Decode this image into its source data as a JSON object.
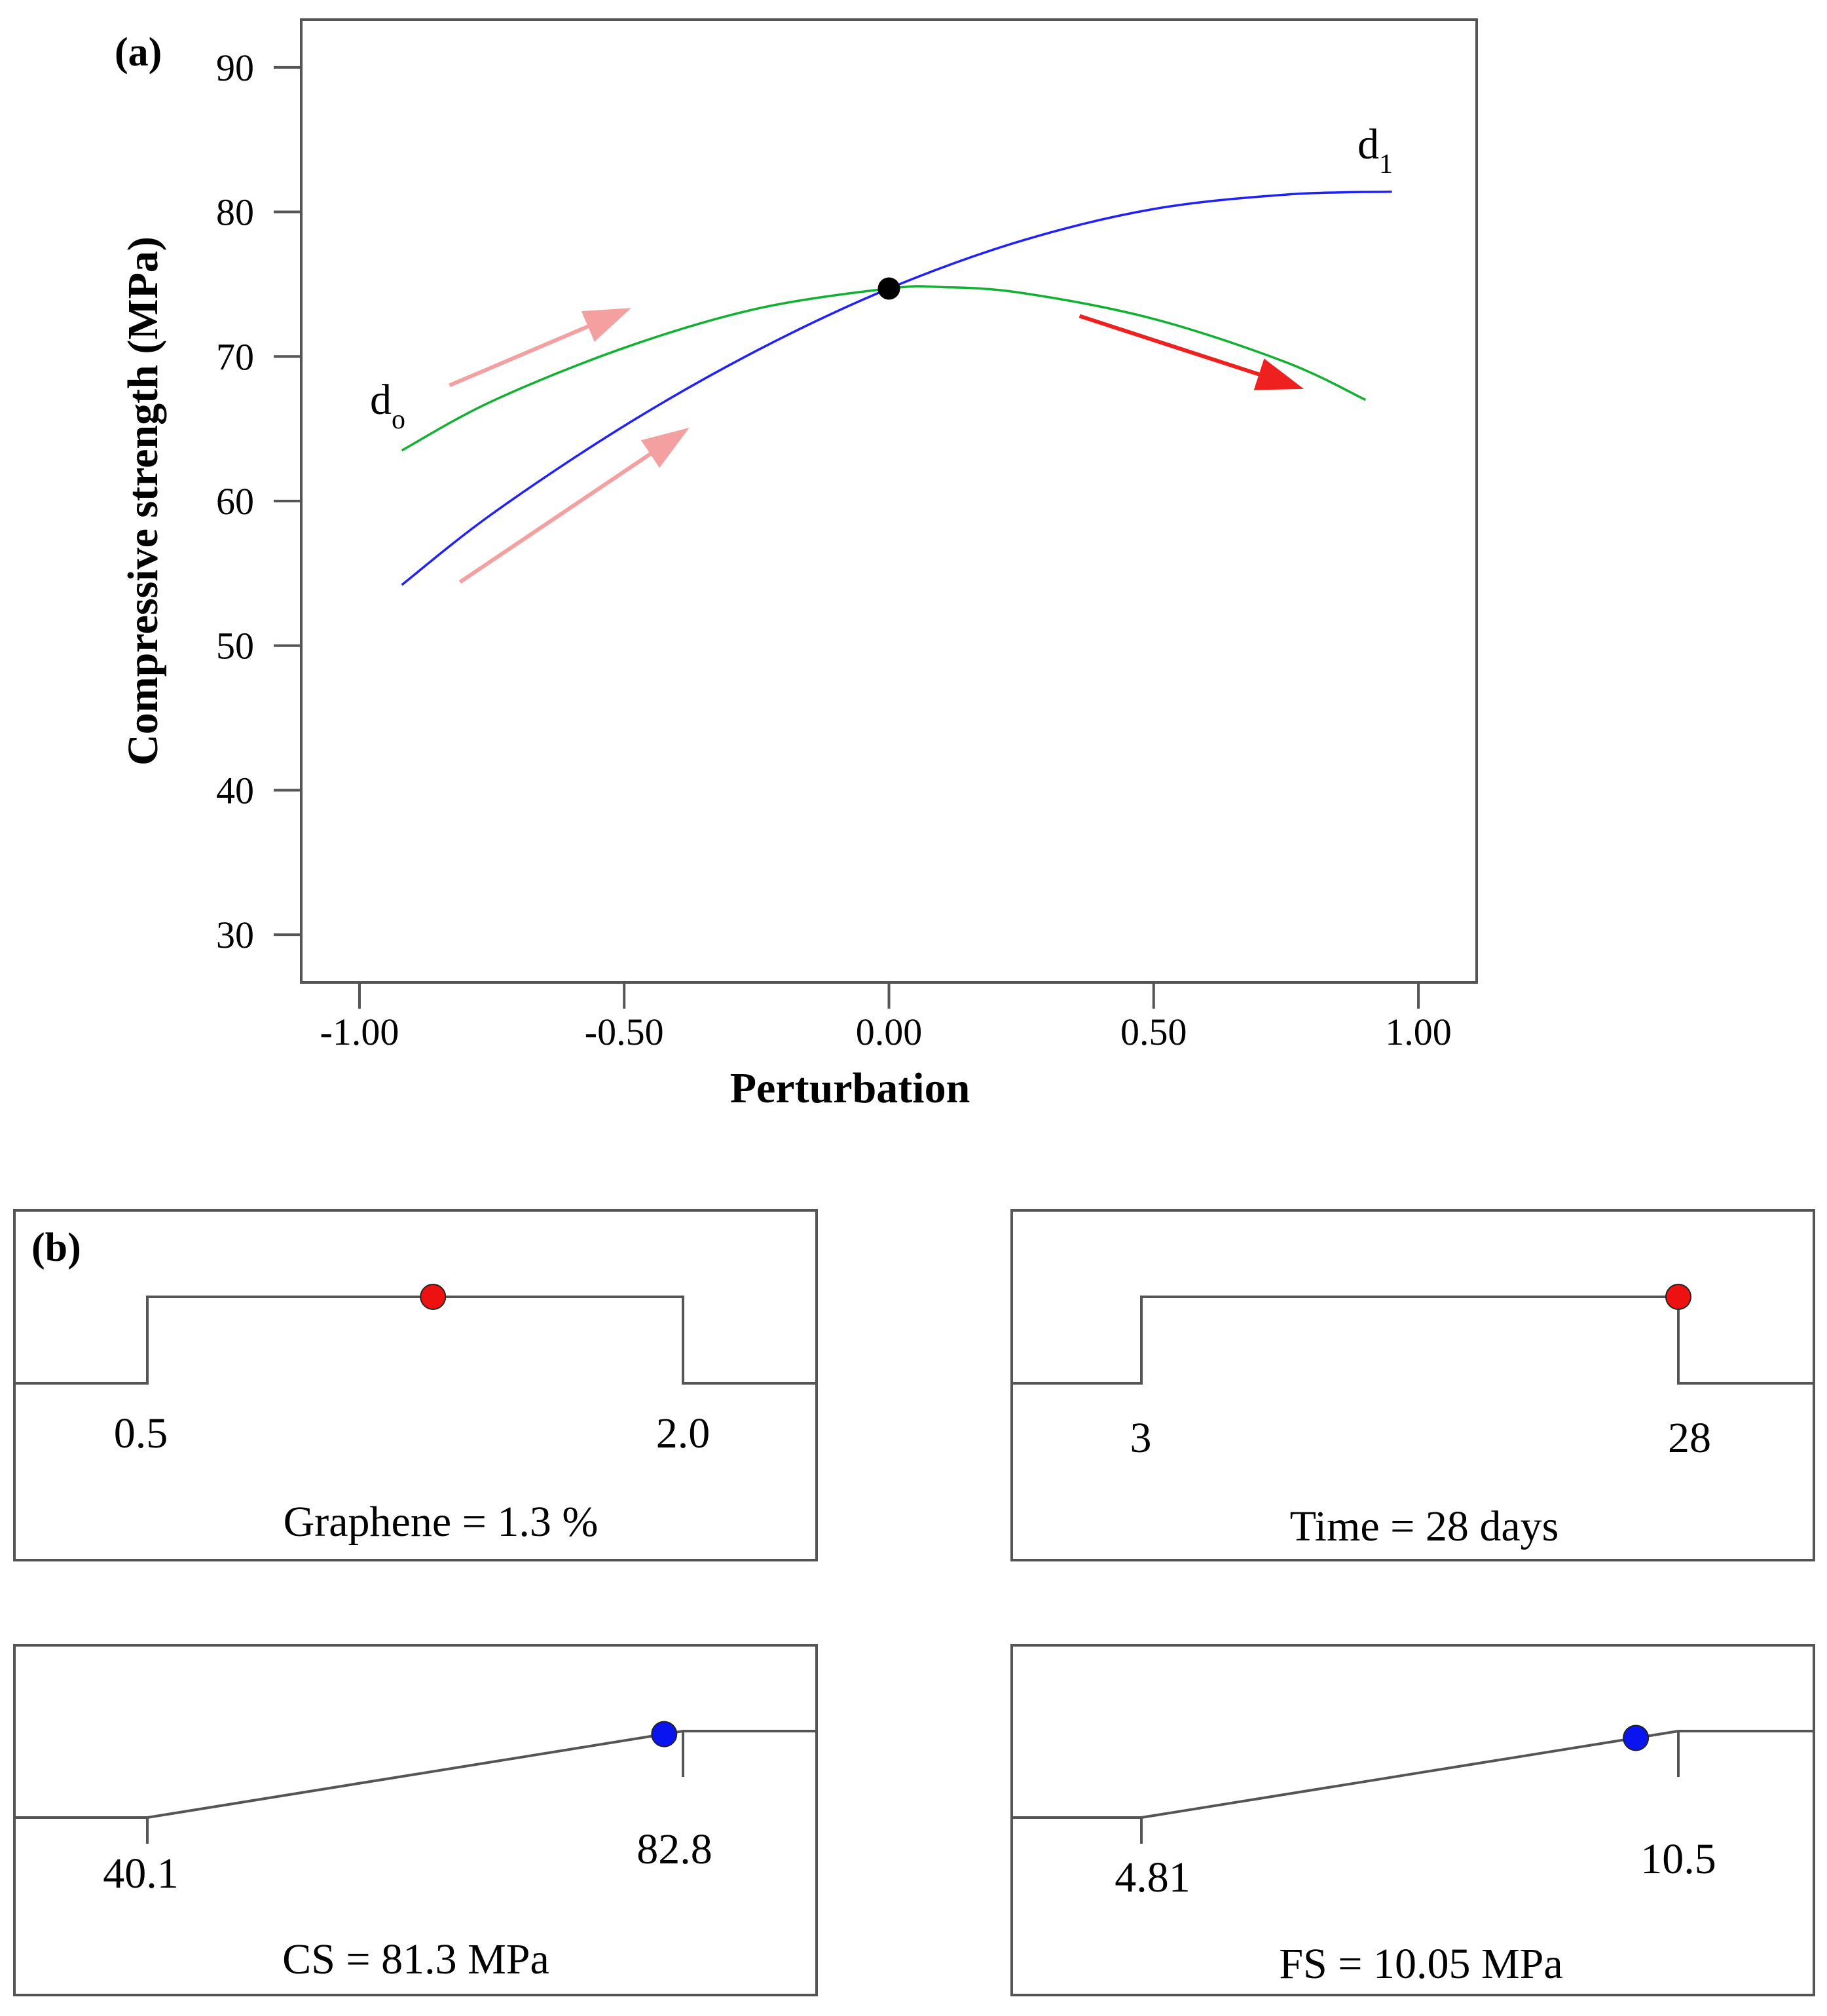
{
  "chart_data": [
    {
      "panel_label": "(a)",
      "type": "line",
      "title": "",
      "xlabel": "Perturbation",
      "ylabel": "Compressive strength  (MPa)",
      "xlim": [
        -1.11,
        1.11
      ],
      "ylim": [
        26.7,
        93.3
      ],
      "x_ticks": [
        -1.0,
        -0.5,
        0.0,
        0.5,
        1.0
      ],
      "x_tick_labels": [
        "-1.00",
        "-0.50",
        "0.00",
        "0.50",
        "1.00"
      ],
      "y_ticks": [
        30,
        40,
        50,
        60,
        70,
        80,
        90
      ],
      "y_tick_labels": [
        "30",
        "40",
        "50",
        "60",
        "70",
        "80",
        "90"
      ],
      "grid": false,
      "series": [
        {
          "name": "d1",
          "label_main": "d",
          "label_sub": "1",
          "color": "#2020ff",
          "x": [
            -0.92,
            -0.75,
            -0.5,
            -0.25,
            0.0,
            0.25,
            0.5,
            0.75,
            0.95
          ],
          "y": [
            54.2,
            59.1,
            65.2,
            70.4,
            74.7,
            78.0,
            80.2,
            81.2,
            81.4
          ]
        },
        {
          "name": "do",
          "label_main": "d",
          "label_sub": "o",
          "color": "#10b030",
          "x": [
            -0.92,
            -0.75,
            -0.5,
            -0.25,
            0.0,
            0.1,
            0.25,
            0.5,
            0.75,
            0.9
          ],
          "y": [
            63.5,
            66.9,
            70.6,
            73.3,
            74.7,
            74.8,
            74.4,
            72.6,
            69.6,
            67.0
          ]
        }
      ],
      "center_point": {
        "x": 0.0,
        "y": 74.7,
        "color": "#000000"
      },
      "arrows": [
        {
          "x1": -0.83,
          "y1": 68.0,
          "x2": -0.49,
          "y2": 73.3,
          "color": "#f4a0a0"
        },
        {
          "x1": -0.81,
          "y1": 54.4,
          "x2": -0.38,
          "y2": 65.0,
          "color": "#f4a0a0"
        },
        {
          "x1": 0.36,
          "y1": 72.8,
          "x2": 0.78,
          "y2": 67.8,
          "color": "#ee2020"
        }
      ]
    },
    {
      "panel_label": "(b)",
      "type": "desirability",
      "factors": [
        {
          "name": "graphene",
          "kind": "factor",
          "low_label": "0.5",
          "high_label": "2.0",
          "low": 0.5,
          "high": 2.0,
          "value": 1.3,
          "caption": "Graphene = 1.3 %",
          "dot_color": "#ee1111"
        },
        {
          "name": "time",
          "kind": "factor",
          "low_label": "3",
          "high_label": "28",
          "low": 3,
          "high": 28,
          "value": 28,
          "caption": "Time = 28 days",
          "dot_color": "#ee1111"
        },
        {
          "name": "cs",
          "kind": "response",
          "low_label": "40.1",
          "high_label": "82.8",
          "low": 40.1,
          "high": 82.8,
          "value": 81.3,
          "caption": "CS = 81.3 MPa",
          "dot_color": "#0a14ee"
        },
        {
          "name": "fs",
          "kind": "response",
          "low_label": "4.81",
          "high_label": "10.5",
          "low": 4.81,
          "high": 10.5,
          "value": 10.05,
          "caption": "FS = 10.05 MPa",
          "dot_color": "#0a14ee"
        }
      ]
    }
  ]
}
